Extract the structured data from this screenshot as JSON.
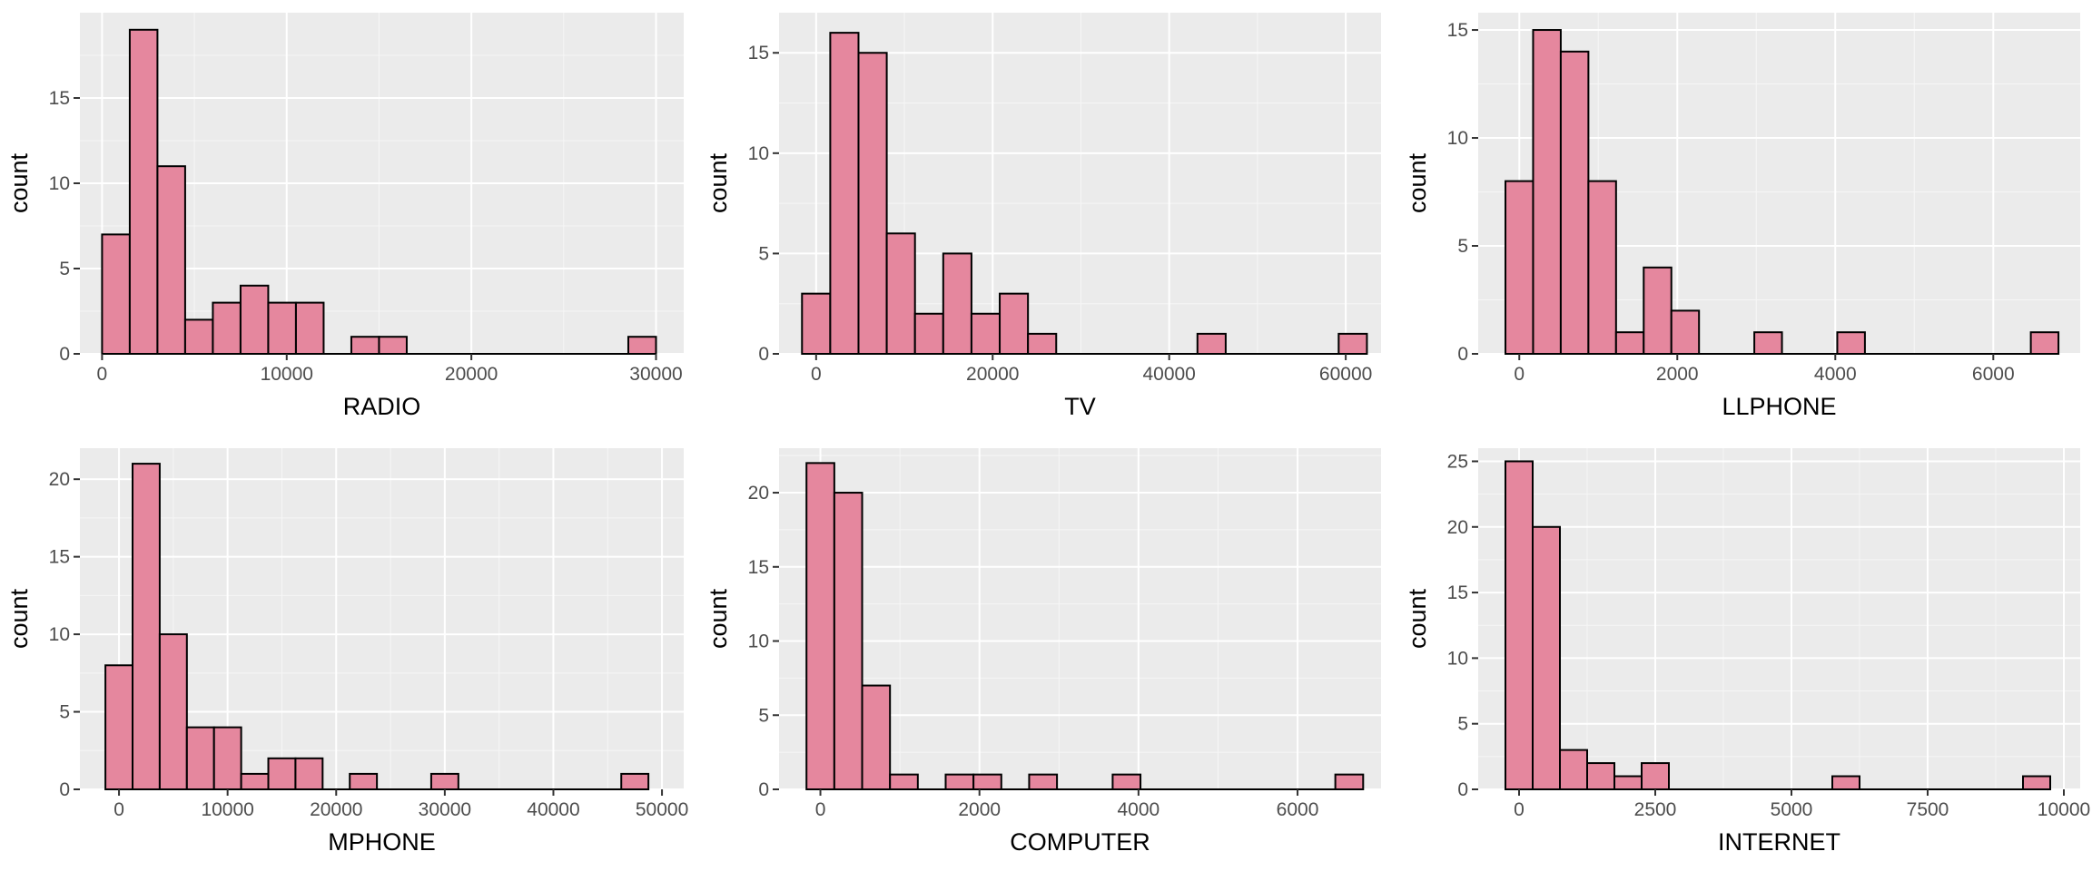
{
  "chart_data": [
    {
      "type": "bar",
      "variable": "RADIO",
      "xlabel": "RADIO",
      "ylabel": "count",
      "xlim": [
        -1200,
        31500
      ],
      "ylim": [
        0,
        20
      ],
      "x_ticks": [
        0,
        10000,
        20000,
        30000
      ],
      "x_tick_labels": [
        "0",
        "10000",
        "20000",
        "30000"
      ],
      "y_ticks": [
        0,
        5,
        10,
        15
      ],
      "y_tick_labels": [
        "0",
        "5",
        "10",
        "15"
      ],
      "bins": [
        {
          "from": 0,
          "to": 1500,
          "count": 7
        },
        {
          "from": 1500,
          "to": 3000,
          "count": 19
        },
        {
          "from": 3000,
          "to": 4500,
          "count": 11
        },
        {
          "from": 4500,
          "to": 6000,
          "count": 2
        },
        {
          "from": 6000,
          "to": 7500,
          "count": 3
        },
        {
          "from": 7500,
          "to": 9000,
          "count": 4
        },
        {
          "from": 9000,
          "to": 10500,
          "count": 3
        },
        {
          "from": 10500,
          "to": 12000,
          "count": 3
        },
        {
          "from": 12000,
          "to": 13500,
          "count": 0
        },
        {
          "from": 13500,
          "to": 15000,
          "count": 1
        },
        {
          "from": 15000,
          "to": 16500,
          "count": 1
        },
        {
          "from": 16500,
          "to": 18000,
          "count": 0
        },
        {
          "from": 18000,
          "to": 19500,
          "count": 0
        },
        {
          "from": 19500,
          "to": 21000,
          "count": 0
        },
        {
          "from": 21000,
          "to": 22500,
          "count": 0
        },
        {
          "from": 22500,
          "to": 24000,
          "count": 0
        },
        {
          "from": 24000,
          "to": 25500,
          "count": 0
        },
        {
          "from": 25500,
          "to": 27000,
          "count": 0
        },
        {
          "from": 27000,
          "to": 28500,
          "count": 0
        },
        {
          "from": 28500,
          "to": 30000,
          "count": 1
        }
      ]
    },
    {
      "type": "bar",
      "variable": "TV",
      "xlabel": "TV",
      "ylabel": "count",
      "xlim": [
        -4200,
        64000
      ],
      "ylim": [
        0,
        17
      ],
      "x_ticks": [
        0,
        20000,
        40000,
        60000
      ],
      "x_tick_labels": [
        "0",
        "20000",
        "40000",
        "60000"
      ],
      "y_ticks": [
        0,
        5,
        10,
        15
      ],
      "y_tick_labels": [
        "0",
        "5",
        "10",
        "15"
      ],
      "bins": [
        {
          "from": -1600,
          "to": 1600,
          "count": 3
        },
        {
          "from": 1600,
          "to": 4800,
          "count": 16
        },
        {
          "from": 4800,
          "to": 8000,
          "count": 15
        },
        {
          "from": 8000,
          "to": 11200,
          "count": 6
        },
        {
          "from": 11200,
          "to": 14400,
          "count": 2
        },
        {
          "from": 14400,
          "to": 17600,
          "count": 5
        },
        {
          "from": 17600,
          "to": 20800,
          "count": 2
        },
        {
          "from": 20800,
          "to": 24000,
          "count": 3
        },
        {
          "from": 24000,
          "to": 27200,
          "count": 1
        },
        {
          "from": 27200,
          "to": 30400,
          "count": 0
        },
        {
          "from": 30400,
          "to": 33600,
          "count": 0
        },
        {
          "from": 33600,
          "to": 36800,
          "count": 0
        },
        {
          "from": 36800,
          "to": 40000,
          "count": 0
        },
        {
          "from": 40000,
          "to": 43200,
          "count": 0
        },
        {
          "from": 43200,
          "to": 46400,
          "count": 1
        },
        {
          "from": 46400,
          "to": 49600,
          "count": 0
        },
        {
          "from": 49600,
          "to": 52800,
          "count": 0
        },
        {
          "from": 52800,
          "to": 56000,
          "count": 0
        },
        {
          "from": 56000,
          "to": 59200,
          "count": 0
        },
        {
          "from": 59200,
          "to": 62400,
          "count": 1
        }
      ]
    },
    {
      "type": "bar",
      "variable": "LLPHONE",
      "xlabel": "LLPHONE",
      "ylabel": "count",
      "xlim": [
        -520,
        7100
      ],
      "ylim": [
        0,
        15.8
      ],
      "x_ticks": [
        0,
        2000,
        4000,
        6000
      ],
      "x_tick_labels": [
        "0",
        "2000",
        "4000",
        "6000"
      ],
      "y_ticks": [
        0,
        5,
        10,
        15
      ],
      "y_tick_labels": [
        "0",
        "5",
        "10",
        "15"
      ],
      "bins": [
        {
          "from": -175,
          "to": 175,
          "count": 8
        },
        {
          "from": 175,
          "to": 525,
          "count": 15
        },
        {
          "from": 525,
          "to": 875,
          "count": 14
        },
        {
          "from": 875,
          "to": 1225,
          "count": 8
        },
        {
          "from": 1225,
          "to": 1575,
          "count": 1
        },
        {
          "from": 1575,
          "to": 1925,
          "count": 4
        },
        {
          "from": 1925,
          "to": 2275,
          "count": 2
        },
        {
          "from": 2275,
          "to": 2625,
          "count": 0
        },
        {
          "from": 2625,
          "to": 2975,
          "count": 0
        },
        {
          "from": 2975,
          "to": 3325,
          "count": 1
        },
        {
          "from": 3325,
          "to": 3675,
          "count": 0
        },
        {
          "from": 3675,
          "to": 4025,
          "count": 0
        },
        {
          "from": 4025,
          "to": 4375,
          "count": 1
        },
        {
          "from": 4375,
          "to": 4725,
          "count": 0
        },
        {
          "from": 4725,
          "to": 5075,
          "count": 0
        },
        {
          "from": 5075,
          "to": 5425,
          "count": 0
        },
        {
          "from": 5425,
          "to": 5775,
          "count": 0
        },
        {
          "from": 5775,
          "to": 6125,
          "count": 0
        },
        {
          "from": 6125,
          "to": 6475,
          "count": 0
        },
        {
          "from": 6475,
          "to": 6825,
          "count": 1
        }
      ]
    },
    {
      "type": "bar",
      "variable": "MPHONE",
      "xlabel": "MPHONE",
      "ylabel": "count",
      "xlim": [
        -3600,
        52000
      ],
      "ylim": [
        0,
        22
      ],
      "x_ticks": [
        0,
        10000,
        20000,
        30000,
        40000,
        50000
      ],
      "x_tick_labels": [
        "0",
        "10000",
        "20000",
        "30000",
        "40000",
        "50000"
      ],
      "y_ticks": [
        0,
        5,
        10,
        15,
        20
      ],
      "y_tick_labels": [
        "0",
        "5",
        "10",
        "15",
        "20"
      ],
      "bins": [
        {
          "from": -1250,
          "to": 1250,
          "count": 8
        },
        {
          "from": 1250,
          "to": 3750,
          "count": 21
        },
        {
          "from": 3750,
          "to": 6250,
          "count": 10
        },
        {
          "from": 6250,
          "to": 8750,
          "count": 4
        },
        {
          "from": 8750,
          "to": 11250,
          "count": 4
        },
        {
          "from": 11250,
          "to": 13750,
          "count": 1
        },
        {
          "from": 13750,
          "to": 16250,
          "count": 2
        },
        {
          "from": 16250,
          "to": 18750,
          "count": 2
        },
        {
          "from": 18750,
          "to": 21250,
          "count": 0
        },
        {
          "from": 21250,
          "to": 23750,
          "count": 1
        },
        {
          "from": 23750,
          "to": 26250,
          "count": 0
        },
        {
          "from": 26250,
          "to": 28750,
          "count": 0
        },
        {
          "from": 28750,
          "to": 31250,
          "count": 1
        },
        {
          "from": 31250,
          "to": 33750,
          "count": 0
        },
        {
          "from": 33750,
          "to": 36250,
          "count": 0
        },
        {
          "from": 36250,
          "to": 38750,
          "count": 0
        },
        {
          "from": 38750,
          "to": 41250,
          "count": 0
        },
        {
          "from": 41250,
          "to": 43750,
          "count": 0
        },
        {
          "from": 43750,
          "to": 46250,
          "count": 0
        },
        {
          "from": 46250,
          "to": 48750,
          "count": 1
        }
      ]
    },
    {
      "type": "bar",
      "variable": "COMPUTER",
      "xlabel": "COMPUTER",
      "ylabel": "count",
      "xlim": [
        -520,
        7050
      ],
      "ylim": [
        0,
        23
      ],
      "x_ticks": [
        0,
        2000,
        4000,
        6000
      ],
      "x_tick_labels": [
        "0",
        "2000",
        "4000",
        "6000"
      ],
      "y_ticks": [
        0,
        5,
        10,
        15,
        20
      ],
      "y_tick_labels": [
        "0",
        "5",
        "10",
        "15",
        "20"
      ],
      "bins": [
        {
          "from": -175,
          "to": 175,
          "count": 22
        },
        {
          "from": 175,
          "to": 525,
          "count": 20
        },
        {
          "from": 525,
          "to": 875,
          "count": 7
        },
        {
          "from": 875,
          "to": 1225,
          "count": 1
        },
        {
          "from": 1225,
          "to": 1575,
          "count": 0
        },
        {
          "from": 1575,
          "to": 1925,
          "count": 1
        },
        {
          "from": 1925,
          "to": 2275,
          "count": 1
        },
        {
          "from": 2275,
          "to": 2625,
          "count": 0
        },
        {
          "from": 2625,
          "to": 2975,
          "count": 1
        },
        {
          "from": 2975,
          "to": 3325,
          "count": 0
        },
        {
          "from": 3325,
          "to": 3675,
          "count": 0
        },
        {
          "from": 3675,
          "to": 4025,
          "count": 1
        },
        {
          "from": 4025,
          "to": 4375,
          "count": 0
        },
        {
          "from": 4375,
          "to": 4725,
          "count": 0
        },
        {
          "from": 4725,
          "to": 5075,
          "count": 0
        },
        {
          "from": 5075,
          "to": 5425,
          "count": 0
        },
        {
          "from": 5425,
          "to": 5775,
          "count": 0
        },
        {
          "from": 5775,
          "to": 6125,
          "count": 0
        },
        {
          "from": 6125,
          "to": 6475,
          "count": 0
        },
        {
          "from": 6475,
          "to": 6825,
          "count": 1
        }
      ]
    },
    {
      "type": "bar",
      "variable": "INTERNET",
      "xlabel": "INTERNET",
      "ylabel": "count",
      "xlim": [
        -750,
        10300
      ],
      "ylim": [
        0,
        26
      ],
      "x_ticks": [
        0,
        2500,
        5000,
        7500,
        10000
      ],
      "x_tick_labels": [
        "0",
        "2500",
        "5000",
        "7500",
        "10000"
      ],
      "y_ticks": [
        0,
        5,
        10,
        15,
        20,
        25
      ],
      "y_tick_labels": [
        "0",
        "5",
        "10",
        "15",
        "20",
        "25"
      ],
      "bins": [
        {
          "from": -250,
          "to": 250,
          "count": 25
        },
        {
          "from": 250,
          "to": 750,
          "count": 20
        },
        {
          "from": 750,
          "to": 1250,
          "count": 3
        },
        {
          "from": 1250,
          "to": 1750,
          "count": 2
        },
        {
          "from": 1750,
          "to": 2250,
          "count": 1
        },
        {
          "from": 2250,
          "to": 2750,
          "count": 2
        },
        {
          "from": 2750,
          "to": 3250,
          "count": 0
        },
        {
          "from": 3250,
          "to": 3750,
          "count": 0
        },
        {
          "from": 3750,
          "to": 4250,
          "count": 0
        },
        {
          "from": 4250,
          "to": 4750,
          "count": 0
        },
        {
          "from": 4750,
          "to": 5250,
          "count": 0
        },
        {
          "from": 5250,
          "to": 5750,
          "count": 0
        },
        {
          "from": 5750,
          "to": 6250,
          "count": 1
        },
        {
          "from": 6250,
          "to": 6750,
          "count": 0
        },
        {
          "from": 6750,
          "to": 7250,
          "count": 0
        },
        {
          "from": 7250,
          "to": 7750,
          "count": 0
        },
        {
          "from": 7750,
          "to": 8250,
          "count": 0
        },
        {
          "from": 8250,
          "to": 8750,
          "count": 0
        },
        {
          "from": 8750,
          "to": 9250,
          "count": 0
        },
        {
          "from": 9250,
          "to": 9750,
          "count": 1
        }
      ]
    }
  ],
  "style": {
    "panel_background": "#ebebeb",
    "grid_color": "#ffffff",
    "bar_fill": "#e5879e",
    "bar_outline": "#000000",
    "tick_label_color": "#4d4d4d"
  }
}
